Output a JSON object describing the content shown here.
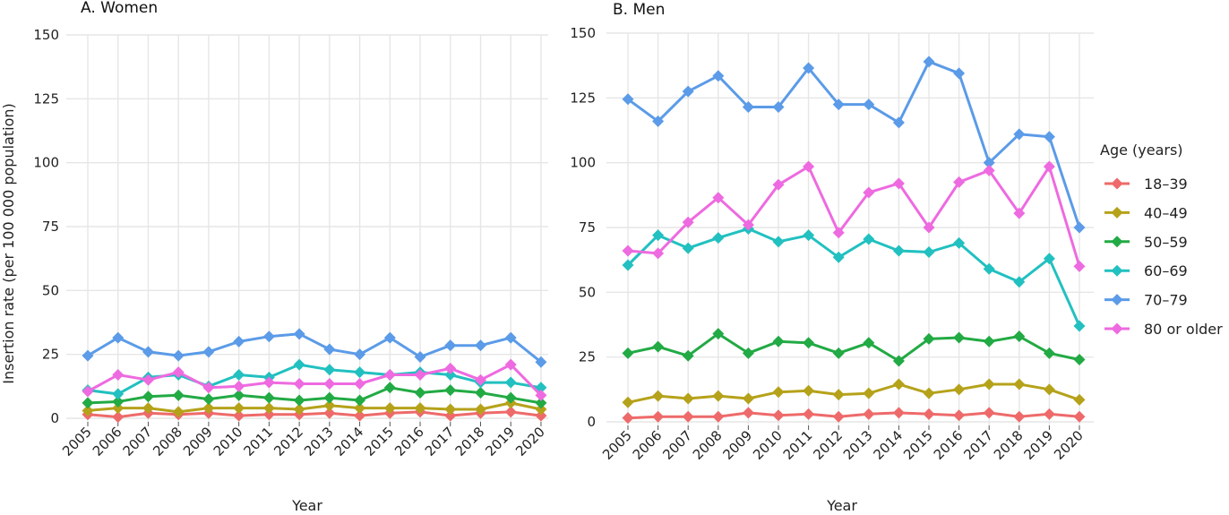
{
  "chart_data": [
    {
      "type": "line",
      "title": "A.   Women",
      "xlabel": "Year",
      "ylabel": "Insertion rate (per 100 000 population)",
      "ylim": [
        0,
        150
      ],
      "yticks": [
        "0",
        "25",
        "50",
        "75",
        "100",
        "125",
        "150"
      ],
      "x": [
        "2005",
        "2006",
        "2007",
        "2008",
        "2009",
        "2010",
        "2011",
        "2012",
        "2013",
        "2014",
        "2015",
        "2016",
        "2017",
        "2018",
        "2019",
        "2020"
      ],
      "grid": true,
      "series": [
        {
          "name": "18–39",
          "color": "#ee6a6a",
          "values": [
            1.5,
            0.5,
            2,
            1.5,
            2,
            1,
            1.5,
            1.5,
            2,
            1,
            2,
            2.5,
            1,
            2,
            2.5,
            1
          ]
        },
        {
          "name": "40–49",
          "color": "#b5a21a",
          "values": [
            3,
            4,
            4,
            2.5,
            4,
            4,
            4,
            3.5,
            5,
            4,
            4,
            4,
            3.5,
            3.5,
            6,
            3.5
          ]
        },
        {
          "name": "50–59",
          "color": "#22aa44",
          "values": [
            6,
            6.5,
            8.5,
            9,
            7.5,
            9,
            8,
            7,
            8,
            7,
            12,
            10,
            11,
            10,
            8,
            6
          ]
        },
        {
          "name": "60–69",
          "color": "#22c0c0",
          "values": [
            11,
            9.5,
            16,
            17,
            12.5,
            17,
            16,
            21,
            19,
            18,
            17,
            18,
            17,
            14,
            14,
            12
          ]
        },
        {
          "name": "70–79",
          "color": "#5b9be8",
          "values": [
            24.5,
            31.5,
            26,
            24.5,
            26,
            30,
            32,
            33,
            27,
            25,
            31.5,
            24,
            28.5,
            28.5,
            31.5,
            22
          ]
        },
        {
          "name": "80 or older",
          "color": "#ee6ae0",
          "values": [
            10.5,
            17,
            15,
            18,
            12,
            12.5,
            14,
            13.5,
            13.5,
            13.5,
            17,
            17,
            19.5,
            15,
            21,
            9
          ]
        }
      ]
    },
    {
      "type": "line",
      "title": "B.   Men",
      "xlabel": "Year",
      "ylabel": "",
      "ylim": [
        0,
        150
      ],
      "yticks": [
        "0",
        "25",
        "50",
        "75",
        "100",
        "125",
        "150"
      ],
      "x": [
        "2005",
        "2006",
        "2007",
        "2008",
        "2009",
        "2010",
        "2011",
        "2012",
        "2013",
        "2014",
        "2015",
        "2016",
        "2017",
        "2018",
        "2019",
        "2020"
      ],
      "grid": true,
      "series": [
        {
          "name": "18–39",
          "color": "#ee6a6a",
          "values": [
            1.5,
            2,
            2,
            2,
            3.5,
            2.5,
            3,
            2,
            3,
            3.5,
            3,
            2.5,
            3.5,
            2,
            3,
            2
          ]
        },
        {
          "name": "40–49",
          "color": "#b5a21a",
          "values": [
            7.5,
            10,
            9,
            10,
            9,
            11.5,
            12,
            10.5,
            11,
            14.5,
            11,
            12.5,
            14.5,
            14.5,
            12.5,
            8.5
          ]
        },
        {
          "name": "50–59",
          "color": "#22aa44",
          "values": [
            26.5,
            29,
            25.5,
            34,
            26.5,
            31,
            30.5,
            26.5,
            30.5,
            23.5,
            32,
            32.5,
            31,
            33,
            26.5,
            24
          ]
        },
        {
          "name": "60–69",
          "color": "#22c0c0",
          "values": [
            60.5,
            72,
            67,
            71,
            74.5,
            69.5,
            72,
            63.5,
            70.5,
            66,
            65.5,
            69,
            59,
            54,
            63,
            37
          ]
        },
        {
          "name": "70–79",
          "color": "#5b9be8",
          "values": [
            124.5,
            116,
            127.5,
            133.5,
            121.5,
            121.5,
            136.5,
            122.5,
            122.5,
            115.5,
            139,
            134.5,
            100,
            111,
            110,
            75
          ]
        },
        {
          "name": "80 or older",
          "color": "#ee6ae0",
          "values": [
            66,
            65,
            77,
            86.5,
            76,
            91.5,
            98.5,
            73,
            88.5,
            92,
            75,
            92.5,
            97,
            80.5,
            98.5,
            60
          ]
        }
      ]
    }
  ],
  "legend": {
    "title": "Age (years)",
    "items": [
      {
        "label": "18–39",
        "color": "#ee6a6a"
      },
      {
        "label": "40–49",
        "color": "#b5a21a"
      },
      {
        "label": "50–59",
        "color": "#22aa44"
      },
      {
        "label": "60–69",
        "color": "#22c0c0"
      },
      {
        "label": "70–79",
        "color": "#5b9be8"
      },
      {
        "label": "80 or older",
        "color": "#ee6ae0"
      }
    ]
  }
}
